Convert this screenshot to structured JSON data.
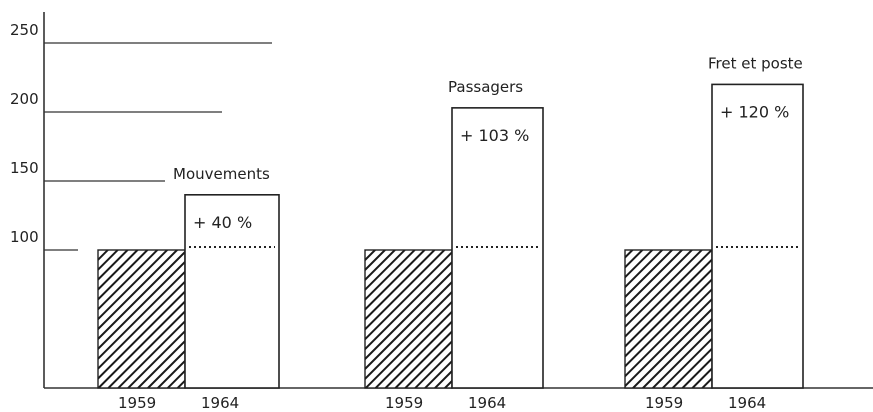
{
  "chart_data": {
    "type": "bar",
    "title": "",
    "xlabel": "",
    "ylabel": "",
    "ylim": [
      0,
      265
    ],
    "yticks": [
      100,
      150,
      200,
      250
    ],
    "grid": false,
    "legend": "none",
    "series_labels": [
      "1959",
      "1964"
    ],
    "groups": [
      {
        "label": "Mouvements",
        "base": 100,
        "value": 140,
        "change_label": "+ 40 %"
      },
      {
        "label": "Passagers",
        "base": 100,
        "value": 203,
        "change_label": "+ 103 %"
      },
      {
        "label": "Fret et poste",
        "base": 100,
        "value": 220,
        "change_label": "+ 120 %"
      }
    ],
    "styles": {
      "base_fill": "hatched",
      "value_fill": "#ffffff",
      "ink": "#222222"
    }
  }
}
